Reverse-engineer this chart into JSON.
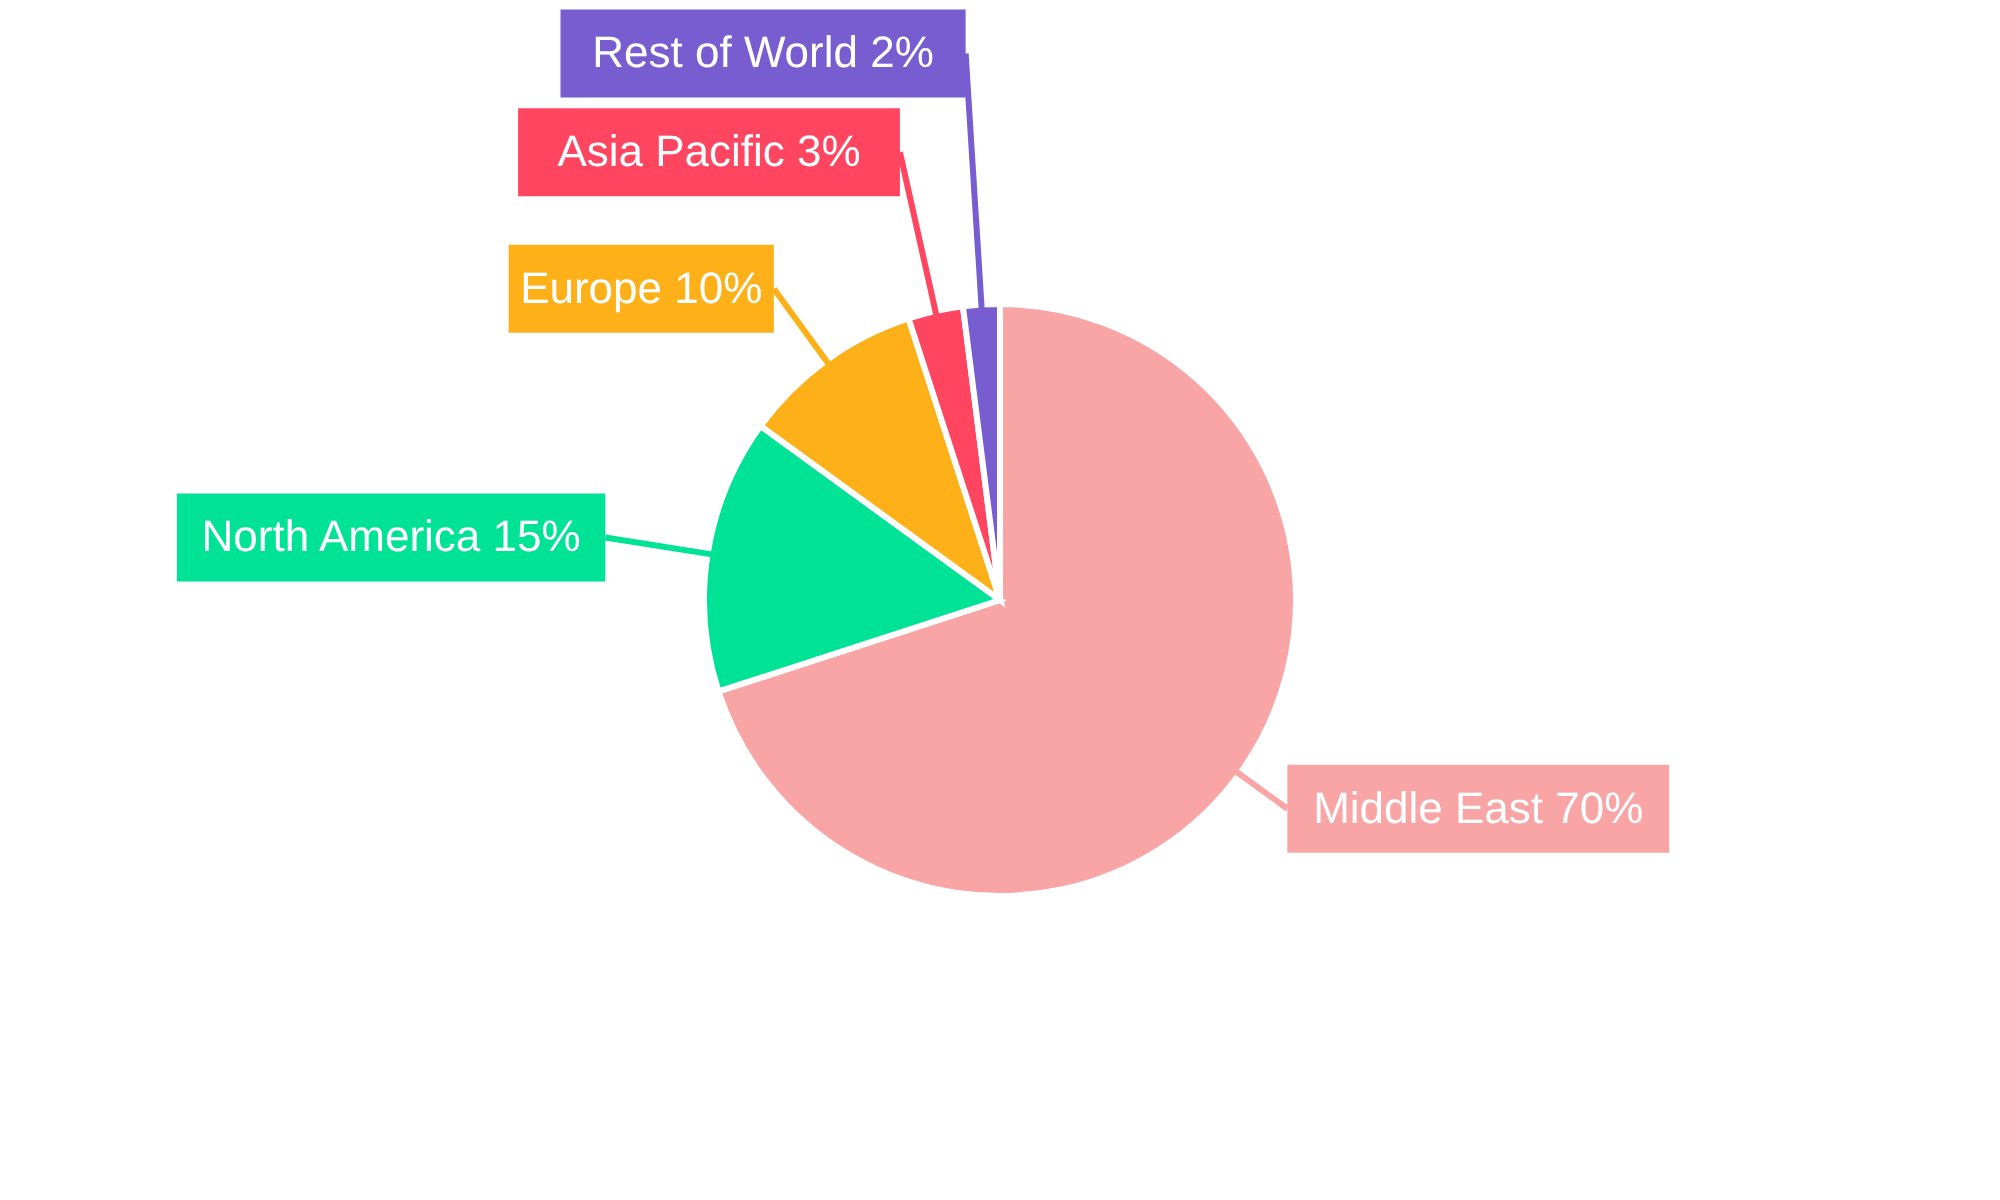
{
  "chart_data": {
    "type": "pie",
    "categories": [
      "Middle East",
      "North America",
      "Europe",
      "Asia Pacific",
      "Rest of World"
    ],
    "values": [
      70,
      15,
      10,
      3,
      2
    ],
    "colors": [
      "#f9a5a6",
      "#00e396",
      "#feb019",
      "#ff4560",
      "#775dd0"
    ],
    "value_labels": [
      "70%",
      "15%",
      "10%",
      "3%",
      "2%"
    ]
  }
}
